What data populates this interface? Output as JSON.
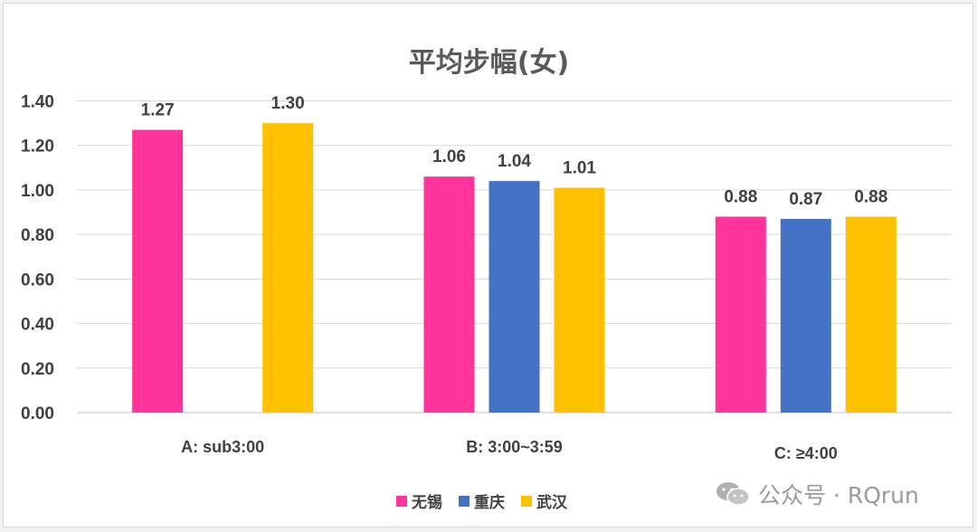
{
  "chart_data": {
    "type": "bar",
    "title": "平均步幅(女)",
    "categories": [
      "A: sub3:00",
      "B: 3:00~3:59",
      "C: ≥4:00"
    ],
    "series": [
      {
        "name": "无锡",
        "color": "#FF3399",
        "values": [
          1.27,
          1.06,
          0.88
        ],
        "labels": [
          "1.27",
          "1.06",
          "0.88"
        ]
      },
      {
        "name": "重庆",
        "color": "#4472C4",
        "values": [
          null,
          1.04,
          0.87
        ],
        "labels": [
          "",
          "1.04",
          "0.87"
        ]
      },
      {
        "name": "武汉",
        "color": "#FFC000",
        "values": [
          1.3,
          1.01,
          0.88
        ],
        "labels": [
          "1.30",
          "1.01",
          "0.88"
        ]
      }
    ],
    "yticks": [
      "0.00",
      "0.20",
      "0.40",
      "0.60",
      "0.80",
      "1.00",
      "1.20",
      "1.40"
    ],
    "ylim": [
      0,
      1.4
    ],
    "grid": true,
    "legend_position": "bottom"
  },
  "watermark": {
    "text": "公众号 · RQrun",
    "icon": "wechat-icon"
  }
}
